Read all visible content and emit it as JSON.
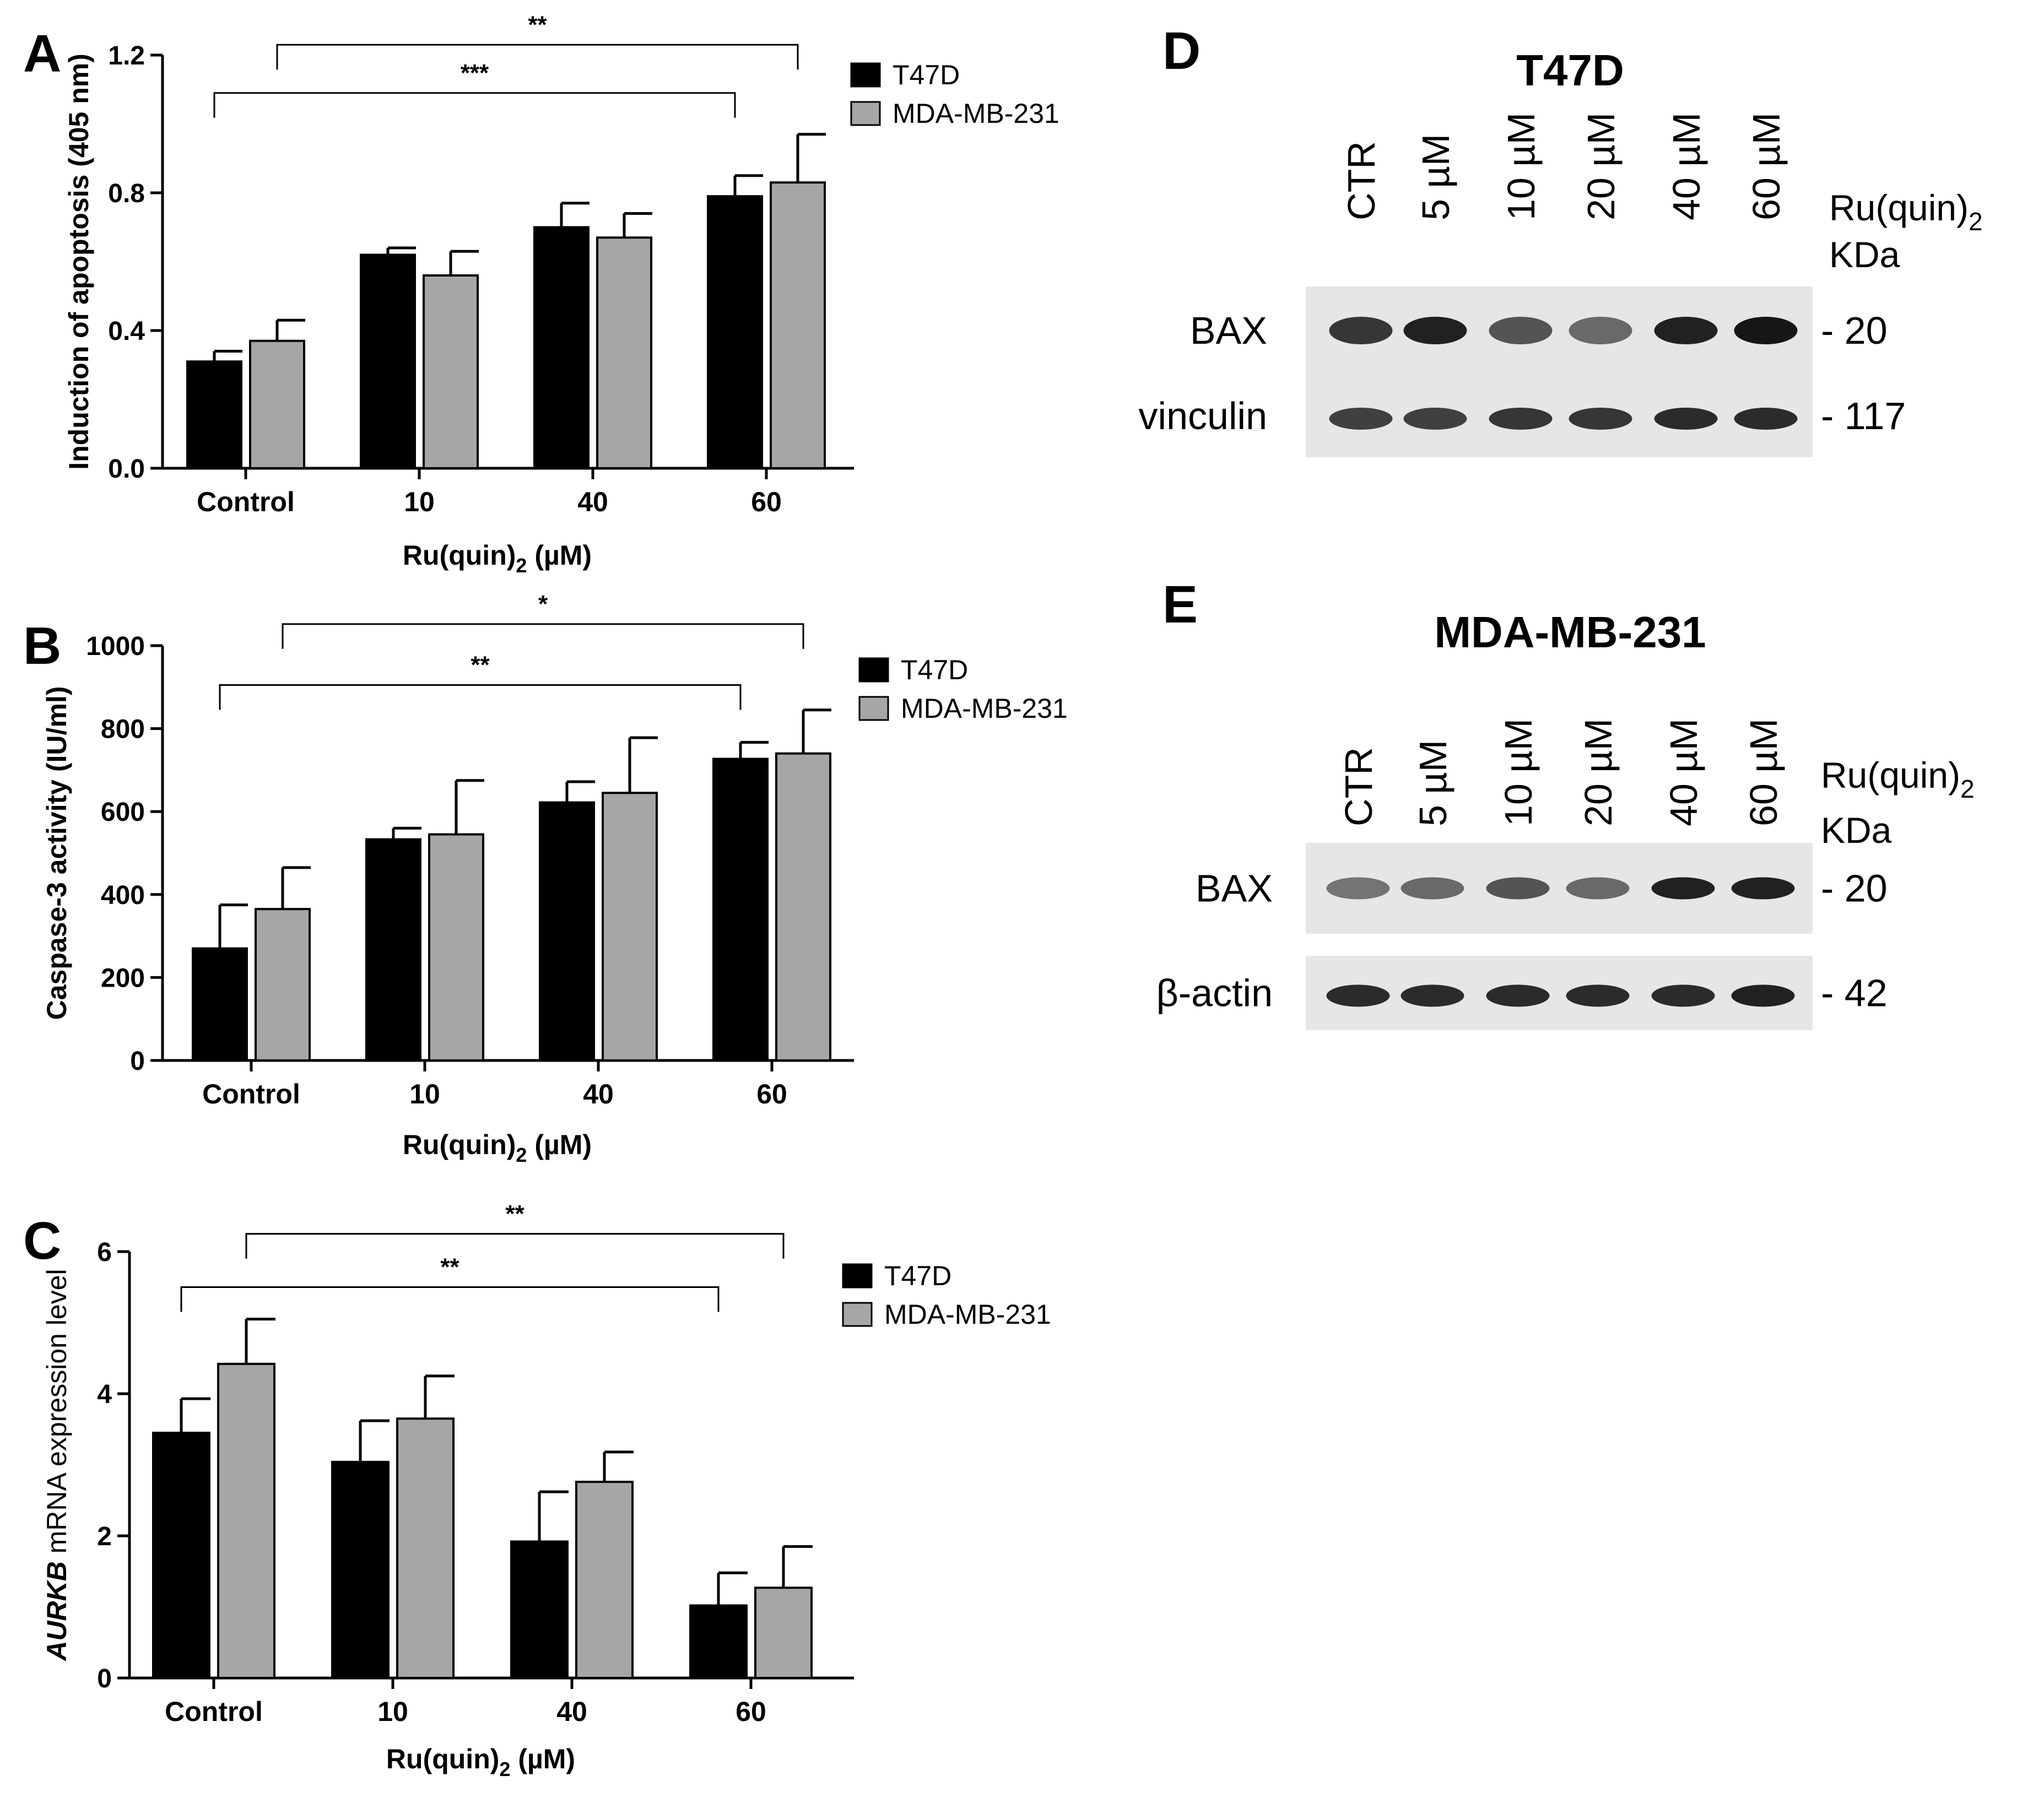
{
  "colors": {
    "t47d": "#000000",
    "mda": "#a6a6a6",
    "blot_bg": "#e6e6e6",
    "band": "#161616"
  },
  "chart_data": [
    {
      "panel": "A",
      "type": "bar",
      "categories": [
        "Control",
        "10",
        "40",
        "60"
      ],
      "series": [
        {
          "name": "T47D",
          "values": [
            0.31,
            0.62,
            0.7,
            0.79
          ],
          "errors": [
            0.03,
            0.02,
            0.07,
            0.06
          ]
        },
        {
          "name": "MDA-MB-231",
          "values": [
            0.37,
            0.56,
            0.67,
            0.83
          ],
          "errors": [
            0.06,
            0.07,
            0.07,
            0.14
          ]
        }
      ],
      "ylim": [
        0,
        1.2
      ],
      "yticks": [
        0.0,
        0.4,
        0.8,
        1.2
      ],
      "ytick_labels": [
        "0.0",
        "0.4",
        "0.8",
        "1.2"
      ],
      "ylabel": "Induction of apoptosis (405 nm)",
      "xlabel": {
        "main": "Ru(quin)",
        "sub": "2",
        "unit": " (µM)"
      },
      "brackets": [
        {
          "from_series": 0,
          "from_cat": 0,
          "to_series": 0,
          "to_cat": 3,
          "label": "***",
          "level": 1.09
        },
        {
          "from_series": 1,
          "from_cat": 0,
          "to_series": 1,
          "to_cat": 3,
          "label": "**",
          "level": 1.23
        }
      ]
    },
    {
      "panel": "B",
      "type": "bar",
      "categories": [
        "Control",
        "10",
        "40",
        "60"
      ],
      "series": [
        {
          "name": "T47D",
          "values": [
            270,
            533,
            622,
            727
          ],
          "errors": [
            105,
            27,
            50,
            40
          ]
        },
        {
          "name": "MDA-MB-231",
          "values": [
            365,
            545,
            645,
            740
          ],
          "errors": [
            100,
            130,
            133,
            105
          ]
        }
      ],
      "ylim": [
        0,
        1000
      ],
      "yticks": [
        0,
        200,
        400,
        600,
        800,
        1000
      ],
      "ytick_labels": [
        "0",
        "200",
        "400",
        "600",
        "800",
        "1000"
      ],
      "ylabel": "Caspase-3 activity (IU/ml)",
      "xlabel": {
        "main": "Ru(quin)",
        "sub": "2",
        "unit": " (µM)"
      },
      "brackets": [
        {
          "from_series": 0,
          "from_cat": 0,
          "to_series": 0,
          "to_cat": 3,
          "label": "**",
          "level": 905
        },
        {
          "from_series": 1,
          "from_cat": 0,
          "to_series": 1,
          "to_cat": 3,
          "label": "*",
          "level": 1052
        }
      ]
    },
    {
      "panel": "C",
      "type": "bar",
      "categories": [
        "Control",
        "10",
        "40",
        "60"
      ],
      "series": [
        {
          "name": "T47D",
          "values": [
            3.45,
            3.04,
            1.92,
            1.02
          ],
          "errors": [
            0.48,
            0.58,
            0.7,
            0.46
          ]
        },
        {
          "name": "MDA-MB-231",
          "values": [
            4.42,
            3.65,
            2.76,
            1.27
          ],
          "errors": [
            0.63,
            0.6,
            0.42,
            0.58
          ]
        }
      ],
      "ylim": [
        0,
        6
      ],
      "yticks": [
        0,
        2,
        4,
        6
      ],
      "ytick_labels": [
        "0",
        "2",
        "4",
        "6"
      ],
      "ylabel": {
        "italic": "AURKB",
        "rest": " mRNA expression level"
      },
      "xlabel": {
        "main": "Ru(quin)",
        "sub": "2",
        "unit": " (µM)"
      },
      "brackets": [
        {
          "from_series": 0,
          "from_cat": 0,
          "to_series": 0,
          "to_cat": 3,
          "label": "**",
          "level": 5.5
        },
        {
          "from_series": 1,
          "from_cat": 0,
          "to_series": 1,
          "to_cat": 3,
          "label": "**",
          "level": 6.25
        }
      ]
    }
  ],
  "blots": [
    {
      "panel": "D",
      "title": "T47D",
      "lanes": [
        "CTR",
        "5 µM",
        "10 µM",
        "20 µM",
        "40 µM",
        "60 µM"
      ],
      "treatment": {
        "main": "Ru(quin)",
        "sub": "2"
      },
      "kda_label": "KDa",
      "rows": [
        {
          "protein": "BAX",
          "kda": "- 20",
          "intensities": [
            0.85,
            0.95,
            0.7,
            0.6,
            0.95,
            1.0
          ]
        },
        {
          "protein": "vinculin",
          "kda": "- 117",
          "intensities": [
            0.8,
            0.8,
            0.85,
            0.85,
            0.9,
            0.9
          ]
        }
      ]
    },
    {
      "panel": "E",
      "title": "MDA-MB-231",
      "lanes": [
        "CTR",
        "5 µM",
        "10 µM",
        "20 µM",
        "40 µM",
        "60 µM"
      ],
      "treatment": {
        "main": "Ru(quin)",
        "sub": "2"
      },
      "kda_label": "KDa",
      "rows": [
        {
          "protein": "BAX",
          "kda": "- 20",
          "intensities": [
            0.55,
            0.6,
            0.7,
            0.6,
            0.95,
            0.95
          ]
        },
        {
          "protein": "β-actin",
          "kda": "- 42",
          "intensities": [
            0.9,
            0.9,
            0.9,
            0.9,
            0.9,
            0.95
          ]
        }
      ]
    }
  ]
}
